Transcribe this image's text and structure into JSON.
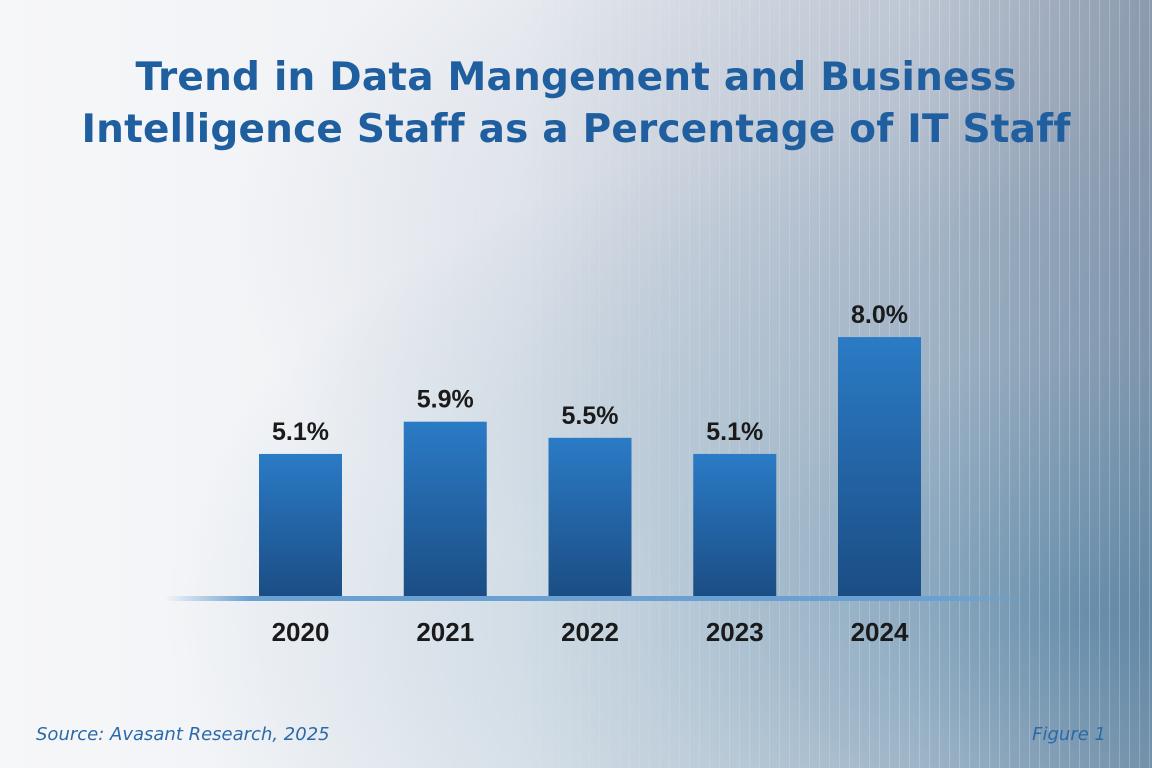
{
  "chart_data": {
    "type": "bar",
    "title": "Trend in Data Mangement and Business Intelligence Staff as a Percentage of IT Staff",
    "title_lines": [
      "Trend in Data Mangement and Business",
      "Intelligence Staff as a Percentage of IT Staff"
    ],
    "categories": [
      "2020",
      "2021",
      "2022",
      "2023",
      "2024"
    ],
    "values": [
      5.1,
      5.9,
      5.5,
      5.1,
      8.0
    ],
    "data_labels": [
      "5.1%",
      "5.9%",
      "5.5%",
      "5.1%",
      "8.0%"
    ],
    "xlabel": "",
    "ylabel": "",
    "grid": false,
    "colors": {
      "bar_top": "#2b7bc6",
      "bar_bottom": "#1b4d84",
      "title": "#1f5f9f",
      "baseline": "#6aa0d2"
    }
  },
  "footer": {
    "source": "Source: Avasant Research, 2025",
    "figure": "Figure 1"
  }
}
